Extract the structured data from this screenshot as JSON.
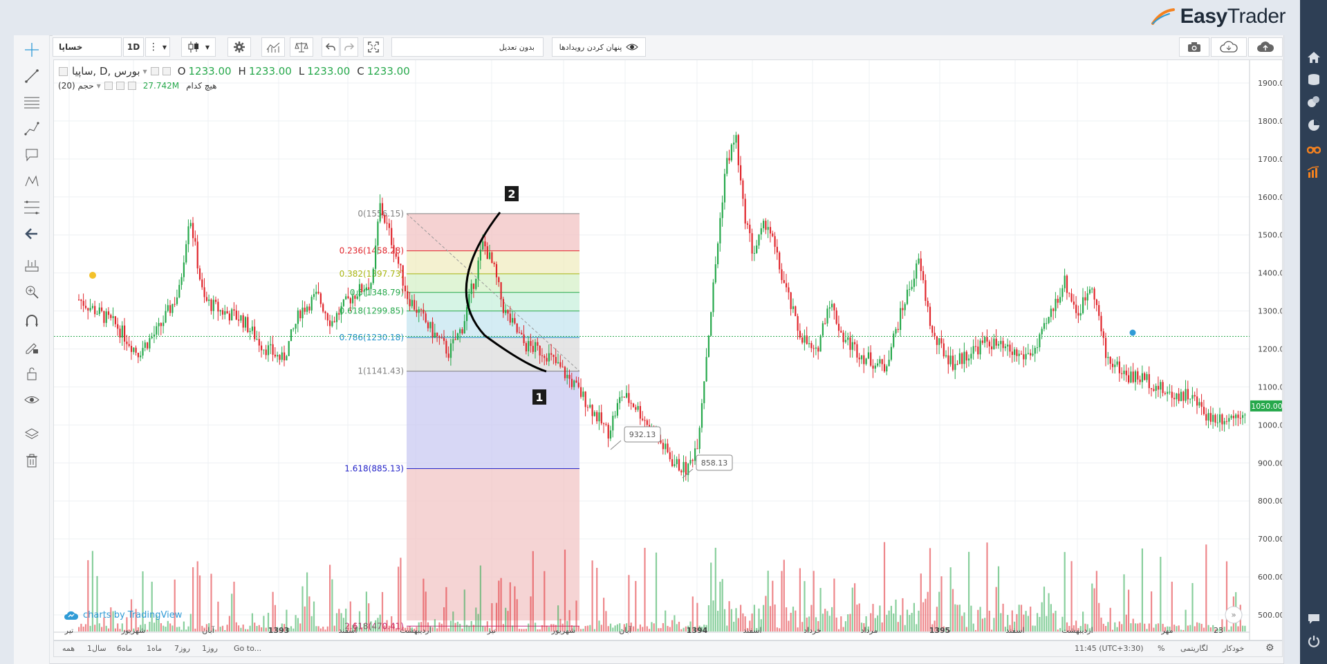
{
  "brand": {
    "name_a": "Easy",
    "name_b": "Trader"
  },
  "toolbar": {
    "symbol": "خساپا",
    "interval": "1D",
    "adjust_label": "بدون تعدیل",
    "hide_events_label": "پنهان کردن رویدادها"
  },
  "legend": {
    "title": "ساپیا, D, بورس",
    "o_label": "O",
    "o": "1233.00",
    "h_label": "H",
    "h": "1233.00",
    "l_label": "L",
    "l": "1233.00",
    "c_label": "C",
    "c": "1233.00",
    "volume_name": "حجم (20)",
    "volume_value": "27.742M",
    "volume_note": "هیچ کدام"
  },
  "watermark": "charts by TradingView",
  "price_axis": [
    "1900.00",
    "1800.00",
    "1700.00",
    "1600.00",
    "1500.00",
    "1400.00",
    "1300.00",
    "1200.00",
    "1100.00",
    "1000.00",
    "900.00",
    "800.00",
    "700.00",
    "600.00",
    "500.00"
  ],
  "last_price": "1050.00",
  "time_axis": [
    {
      "label": "تیر",
      "bold": false
    },
    {
      "label": "شهریور",
      "bold": false
    },
    {
      "label": "آبان",
      "bold": false
    },
    {
      "label": "1393",
      "bold": true
    },
    {
      "label": "اسفند",
      "bold": false
    },
    {
      "label": "اردیبهشت",
      "bold": false
    },
    {
      "label": "تیر",
      "bold": false
    },
    {
      "label": "شهریور",
      "bold": false
    },
    {
      "label": "آبان",
      "bold": false
    },
    {
      "label": "1394",
      "bold": true
    },
    {
      "label": "اسفند",
      "bold": false
    },
    {
      "label": "خرداد",
      "bold": false
    },
    {
      "label": "مرداد",
      "bold": false
    },
    {
      "label": "1395",
      "bold": true
    },
    {
      "label": "اسفند",
      "bold": false
    },
    {
      "label": "اردیبهشت",
      "bold": false
    },
    {
      "label": "مهر",
      "bold": false
    },
    {
      "label": "23",
      "bold": false
    }
  ],
  "fib_levels": [
    {
      "ratio": "0",
      "price": 1556.15,
      "label": "0(1556.15)",
      "color": "#808080"
    },
    {
      "ratio": "0.236",
      "price": 1458.28,
      "label": "0.236(1458.28)",
      "color": "#e0252b"
    },
    {
      "ratio": "0.382",
      "price": 1397.73,
      "label": "0.382(1397.73)",
      "color": "#a8b510"
    },
    {
      "ratio": "0.5",
      "price": 1348.79,
      "label": "0.5(1348.79)",
      "color": "#26a84b"
    },
    {
      "ratio": "0.618",
      "price": 1299.85,
      "label": "0.618(1299.85)",
      "color": "#26a84b"
    },
    {
      "ratio": "0.786",
      "price": 1230.18,
      "label": "0.786(1230.18)",
      "color": "#1e90c8"
    },
    {
      "ratio": "1",
      "price": 1141.43,
      "label": "1(1141.43)",
      "color": "#808080"
    },
    {
      "ratio": "1.618",
      "price": 885.13,
      "label": "1.618(885.13)",
      "color": "#2424c8"
    },
    {
      "ratio": "2.618",
      "price": 470.41,
      "label": "2.618(470.41)",
      "color": "#c0287a"
    }
  ],
  "callouts": [
    {
      "label": "932.13",
      "price": 932.13
    },
    {
      "label": "858.13",
      "price": 858.13
    }
  ],
  "wave_labels": [
    "1",
    "2"
  ],
  "bottom": {
    "ranges": [
      "همه",
      "1سال",
      "6ماه",
      "1ماه",
      "7روز",
      "1روز",
      "Go to..."
    ],
    "time": "11:45 (UTC+3:30)",
    "percent": "%",
    "log": "لگاریتمی",
    "auto": "خودکار"
  },
  "colors": {
    "up": "#26a84b",
    "down": "#e0252b",
    "rail": "#2e3f55",
    "accent": "#f5821f"
  }
}
